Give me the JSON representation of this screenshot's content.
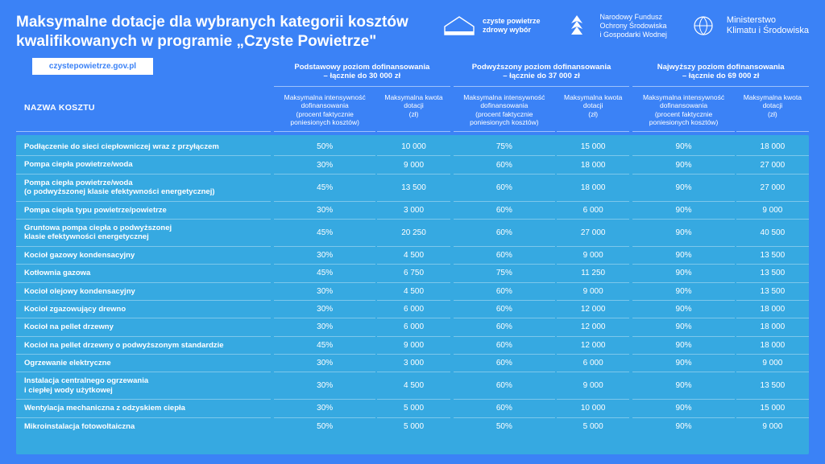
{
  "colors": {
    "page_bg": "#3b82f6",
    "panel_bg": "#36a9e1",
    "text": "#ffffff",
    "badge_bg": "#ffffff",
    "badge_text": "#3b82f6",
    "divider": "rgba(255,255,255,0.35)"
  },
  "header": {
    "title": "Maksymalne dotacje dla wybranych kategorii kosztów kwalifikowanych w programie „Czyste Powietrze\"",
    "url": "czystepowietrze.gov.pl",
    "logos": [
      {
        "name": "czyste-powietrze-logo",
        "text": "czyste powietrze\nzdrowy wybór"
      },
      {
        "name": "nfos-logo",
        "text": "Narodowy Fundusz\nOchrony Środowiska\ni Gospodarki Wodnej"
      },
      {
        "name": "ministerstwo-logo",
        "text": "Ministerstwo\nKlimatu i Środowiska"
      }
    ]
  },
  "table": {
    "name_header": "NAZWA KOSZTU",
    "sub_intensity": "Maksymalna intensywność dofinansowania\n(procent faktycznie poniesionych kosztów)",
    "sub_amount": "Maksymalna kwota dotacji\n(zł)",
    "tiers": [
      {
        "title": "Podstawowy poziom dofinansowania",
        "subtitle": "– łącznie do 30 000 zł"
      },
      {
        "title": "Podwyższony poziom dofinansowania",
        "subtitle": "– łącznie do 37 000 zł"
      },
      {
        "title": "Najwyższy poziom dofinansowania",
        "subtitle": "– łącznie do 69 000 zł"
      }
    ],
    "rows": [
      {
        "name": "Podłączenie do sieci ciepłowniczej wraz z przyłączem",
        "v": [
          "50%",
          "10 000",
          "75%",
          "15 000",
          "90%",
          "18 000"
        ]
      },
      {
        "name": "Pompa ciepła powietrze/woda",
        "v": [
          "30%",
          "9 000",
          "60%",
          "18 000",
          "90%",
          "27 000"
        ]
      },
      {
        "name": "Pompa ciepła powietrze/woda\n(o podwyższonej klasie efektywności energetycznej)",
        "v": [
          "45%",
          "13 500",
          "60%",
          "18 000",
          "90%",
          "27 000"
        ]
      },
      {
        "name": "Pompa ciepła typu powietrze/powietrze",
        "v": [
          "30%",
          "3 000",
          "60%",
          "6 000",
          "90%",
          "9 000"
        ]
      },
      {
        "name": "Gruntowa pompa ciepła o podwyższonej\nklasie efektywności energetycznej",
        "v": [
          "45%",
          "20 250",
          "60%",
          "27 000",
          "90%",
          "40 500"
        ]
      },
      {
        "name": "Kocioł gazowy kondensacyjny",
        "v": [
          "30%",
          "4 500",
          "60%",
          "9 000",
          "90%",
          "13 500"
        ]
      },
      {
        "name": "Kotłownia gazowa",
        "v": [
          "45%",
          "6 750",
          "75%",
          "11 250",
          "90%",
          "13 500"
        ]
      },
      {
        "name": "Kocioł olejowy kondensacyjny",
        "v": [
          "30%",
          "4 500",
          "60%",
          "9 000",
          "90%",
          "13 500"
        ]
      },
      {
        "name": "Kocioł zgazowujący drewno",
        "v": [
          "30%",
          "6 000",
          "60%",
          "12 000",
          "90%",
          "18 000"
        ]
      },
      {
        "name": "Kocioł na pellet drzewny",
        "v": [
          "30%",
          "6 000",
          "60%",
          "12 000",
          "90%",
          "18 000"
        ]
      },
      {
        "name": "Kocioł na pellet drzewny o podwyższonym standardzie",
        "v": [
          "45%",
          "9 000",
          "60%",
          "12 000",
          "90%",
          "18 000"
        ]
      },
      {
        "name": "Ogrzewanie elektryczne",
        "v": [
          "30%",
          "3 000",
          "60%",
          "6 000",
          "90%",
          "9 000"
        ]
      },
      {
        "name": "Instalacja centralnego ogrzewania\ni ciepłej wody użytkowej",
        "v": [
          "30%",
          "4 500",
          "60%",
          "9 000",
          "90%",
          "13 500"
        ]
      },
      {
        "name": "Wentylacja mechaniczna z odzyskiem ciepła",
        "v": [
          "30%",
          "5 000",
          "60%",
          "10 000",
          "90%",
          "15 000"
        ]
      },
      {
        "name": "Mikroinstalacja fotowoltaiczna",
        "v": [
          "50%",
          "5 000",
          "50%",
          "5 000",
          "90%",
          "9 000"
        ]
      }
    ]
  }
}
